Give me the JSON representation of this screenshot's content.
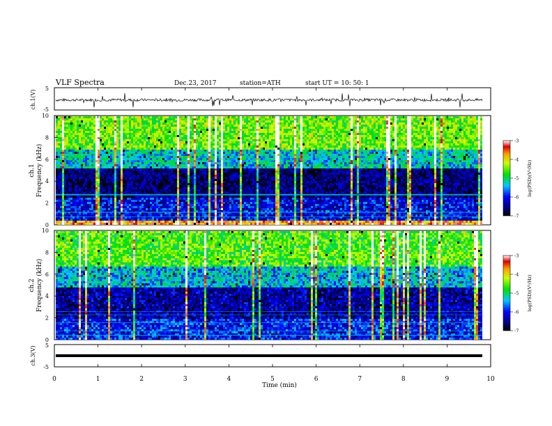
{
  "header": {
    "title": "VLF  Spectra",
    "date": "Dec.23, 2017",
    "station": "station=ATH",
    "start_ut": "start  UT  =    10: 50: 1"
  },
  "panels": {
    "ch1_wave_label": "ch.1(V)",
    "ch1_spec_label_1": "ch.1",
    "ch1_spec_label_2": "Frequency  (kHz)",
    "ch2_spec_label_1": "ch.2",
    "ch2_spec_label_2": "Frequency  (kHz)",
    "ch3_wave_label": "ch.3(V)",
    "x_axis_label": "Time  (min)",
    "colorbar_label": "log(PSD)(V²/Hz)"
  },
  "colors": {
    "spectrum_low": "#00007a",
    "spectrum_mid": "#00e000",
    "spectrum_high": "#e00000"
  },
  "chart_data": [
    {
      "type": "line",
      "name": "ch.1 waveform",
      "xlim": [
        0,
        10
      ],
      "ylim": [
        -5,
        5
      ],
      "yticks": [
        "5",
        "-5"
      ],
      "approx_level": -0.5
    },
    {
      "type": "heatmap",
      "name": "ch.1 spectrogram",
      "xlim": [
        0,
        9.8
      ],
      "ylim": [
        0,
        10
      ],
      "yticks": [
        "0",
        "2",
        "4",
        "6",
        "8",
        "10"
      ],
      "bands": [
        {
          "from": 0,
          "to": 0.5,
          "level": -3.6
        },
        {
          "from": 0.5,
          "to": 2.5,
          "level": -6.1
        },
        {
          "from": 2.5,
          "to": 5.2,
          "level": -6.6
        },
        {
          "from": 5.2,
          "to": 7.0,
          "level": -5.3
        },
        {
          "from": 7.0,
          "to": 10,
          "level": -4.5
        }
      ],
      "colorbar": {
        "ticks": [
          "-3",
          "-4",
          "-5",
          "-6",
          "-7"
        ],
        "range": [
          -7,
          -3
        ]
      }
    },
    {
      "type": "heatmap",
      "name": "ch.2 spectrogram",
      "xlim": [
        0,
        9.8
      ],
      "ylim": [
        0,
        10
      ],
      "yticks": [
        "0",
        "2",
        "4",
        "6",
        "8",
        "10"
      ],
      "bands": [
        {
          "from": 0,
          "to": 2.0,
          "level": -6.0
        },
        {
          "from": 2.0,
          "to": 4.8,
          "level": -6.4
        },
        {
          "from": 4.8,
          "to": 6.8,
          "level": -5.4
        },
        {
          "from": 6.8,
          "to": 10,
          "level": -4.6
        }
      ],
      "colorbar": {
        "ticks": [
          "-3",
          "-4",
          "-5",
          "-6",
          "-7"
        ],
        "range": [
          -7,
          -3
        ]
      }
    },
    {
      "type": "line",
      "name": "ch.3 waveform",
      "xlim": [
        0,
        10
      ],
      "ylim": [
        -5,
        5
      ],
      "yticks": [
        "5",
        "-5"
      ],
      "approx_level": 0
    }
  ],
  "x_axis": {
    "xlim": [
      0,
      10
    ],
    "ticks": [
      "0",
      "1",
      "2",
      "3",
      "4",
      "5",
      "6",
      "7",
      "8",
      "9",
      "10"
    ]
  }
}
